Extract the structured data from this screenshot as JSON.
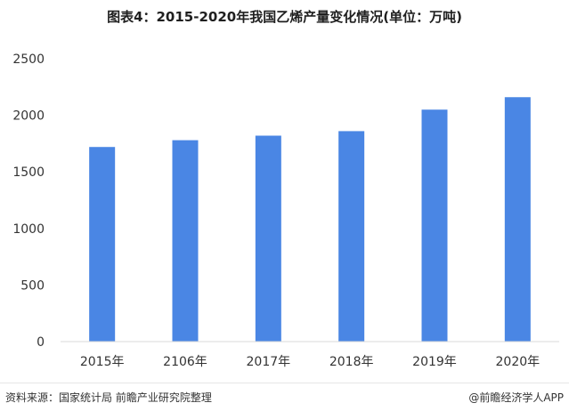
{
  "chart_data": {
    "type": "bar",
    "title": "图表4：2015-2020年我国乙烯产量变化情况(单位：万吨)",
    "categories": [
      "2015年",
      "2106年",
      "2017年",
      "2018年",
      "2019年",
      "2020年"
    ],
    "values": [
      1720,
      1780,
      1820,
      1860,
      2050,
      2160
    ],
    "ylim": [
      0,
      2500
    ],
    "yticks": [
      "0",
      "500",
      "1000",
      "1500",
      "2000",
      "2500"
    ],
    "grid": false,
    "bar_color": "#4a86e4"
  },
  "footer": {
    "source": "资料来源：国家统计局 前瞻产业研究院整理",
    "credit": "@前瞻经济学人APP"
  }
}
